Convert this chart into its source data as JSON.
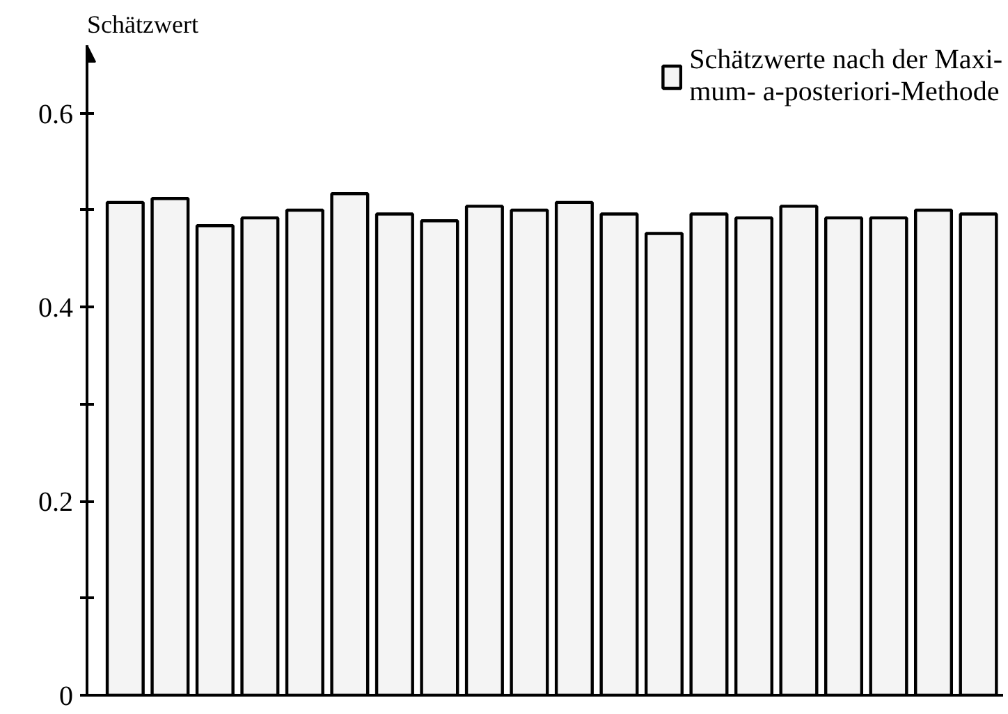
{
  "chart_data": {
    "type": "bar",
    "ylabel": "Schätzwert",
    "categories": [
      null,
      null,
      null,
      null,
      null,
      null,
      null,
      null,
      null,
      null,
      null,
      null,
      null,
      null,
      null,
      null,
      null,
      null,
      null,
      null
    ],
    "series": [
      {
        "name": "Schätzwerte nach der Maxi-\nmum- a-posteriori-Methode",
        "color": "#f4f4f4",
        "values": [
          0.508,
          0.512,
          0.484,
          0.492,
          0.5,
          0.517,
          0.496,
          0.489,
          0.504,
          0.5,
          0.508,
          0.496,
          0.476,
          0.496,
          0.492,
          0.504,
          0.492,
          0.492,
          0.5,
          0.496
        ]
      }
    ],
    "ylim": [
      0,
      0.67
    ],
    "yticks": [
      0,
      {
        "value": 0.1,
        "label": null
      },
      0.2,
      {
        "value": 0.3,
        "label": null
      },
      0.4,
      {
        "value": 0.5,
        "label": null
      },
      0.6
    ],
    "grid": false,
    "legend": "top right",
    "tick_labels": "y"
  }
}
